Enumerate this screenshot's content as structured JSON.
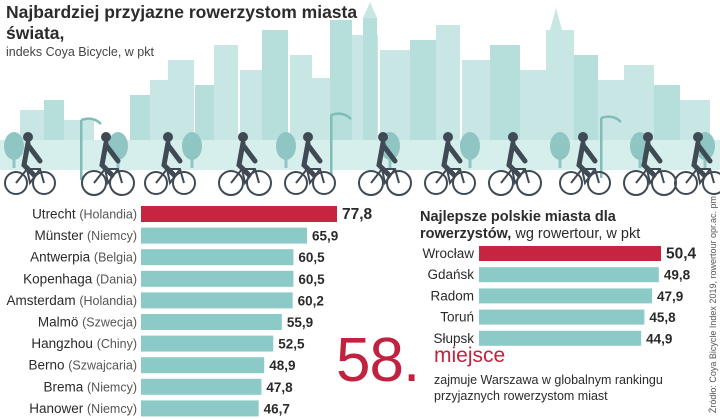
{
  "title": "Najbardziej przyjazne rowerzystom miasta świata,",
  "subtitle": "indeks Coya Bicycle, w pkt",
  "source": "Źródło: Coya Bicycle Index 2019, rowertour opr.ac. pm",
  "colors": {
    "highlight": "#c6243f",
    "bar": "#8ccac8",
    "skyline": "#c7e6e4",
    "skyline_dark": "#8fc6c3"
  },
  "chart_data": [
    {
      "type": "bar",
      "title": "Najbardziej przyjazne rowerzystom miasta świata,",
      "subtitle": "indeks Coya Bicycle, w pkt",
      "categories": [
        {
          "city": "Utrecht",
          "country": "(Holandia)"
        },
        {
          "city": "Münster",
          "country": "(Niemcy)"
        },
        {
          "city": "Antwerpia",
          "country": "(Belgia)"
        },
        {
          "city": "Kopenhaga",
          "country": "(Dania)"
        },
        {
          "city": "Amsterdam",
          "country": "(Holandia)"
        },
        {
          "city": "Malmö",
          "country": "(Szwecja)"
        },
        {
          "city": "Hangzhou",
          "country": "(Chiny)"
        },
        {
          "city": "Berno",
          "country": "(Szwajcaria)"
        },
        {
          "city": "Brema",
          "country": "(Niemcy)"
        },
        {
          "city": "Hanower",
          "country": "(Niemcy)"
        }
      ],
      "values": [
        77.8,
        65.9,
        60.5,
        60.5,
        60.2,
        55.9,
        52.5,
        48.9,
        47.8,
        46.7
      ],
      "value_labels": [
        "77,8",
        "65,9",
        "60,5",
        "60,5",
        "60,2",
        "55,9",
        "52,5",
        "48,9",
        "47,8",
        "46,7"
      ],
      "highlight_index": 0
    },
    {
      "type": "bar",
      "title": "Najlepsze polskie miasta dla rowerzystów,",
      "subtitle": "wg rowertour, w pkt",
      "categories": [
        "Wrocław",
        "Gdańsk",
        "Radom",
        "Toruń",
        "Słupsk"
      ],
      "values": [
        50.4,
        49.8,
        47.9,
        45.8,
        44.9
      ],
      "value_labels": [
        "50,4",
        "49,8",
        "47,9",
        "45,8",
        "44,9"
      ],
      "highlight_index": 0
    }
  ],
  "warsaw": {
    "number": "58",
    "dot": ".",
    "word": "miejsce",
    "desc": "zajmuje Warszawa w globalnym rankingu przyjaznych rowerzystom miast"
  },
  "right_title": {
    "bold": "Najlepsze polskie miasta dla rowerzystów,",
    "light": " wg rowertour, w pkt"
  }
}
